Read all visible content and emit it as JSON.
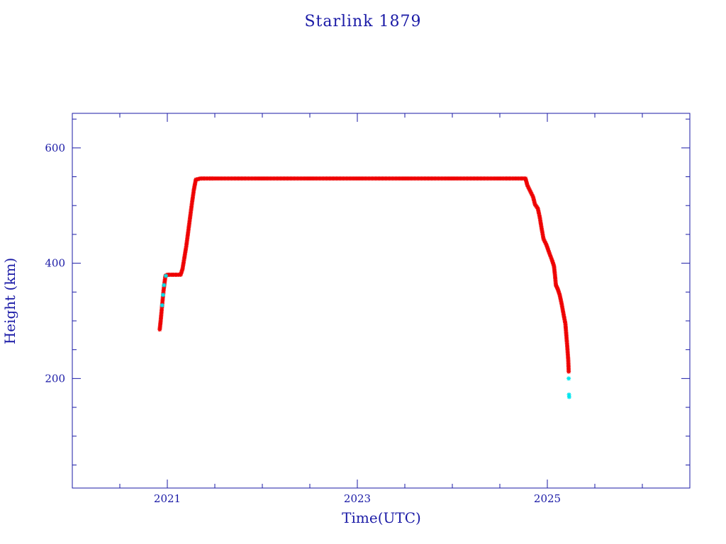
{
  "chart_data": {
    "type": "scatter",
    "title": "Starlink 1879",
    "xlabel": "Time(UTC)",
    "ylabel": "Height (km)",
    "xlim": [
      2020.0,
      2026.5
    ],
    "ylim": [
      10,
      660
    ],
    "x_major_ticks": [
      2021,
      2023,
      2025
    ],
    "x_tick_labels": [
      "2021",
      "2023",
      "2025"
    ],
    "x_minor_ticks": [
      2020.5,
      2021.5,
      2022.0,
      2022.5,
      2023.5,
      2024.0,
      2024.5,
      2025.5,
      2026.0
    ],
    "y_major_ticks": [
      200,
      400,
      600
    ],
    "y_tick_labels": [
      "200",
      "400",
      "600"
    ],
    "y_minor_ticks": [
      50,
      100,
      150,
      250,
      300,
      350,
      450,
      500,
      550,
      650
    ],
    "grid": false,
    "legend": "none",
    "colors": {
      "axis": "#1a1aa6",
      "main_points": "#ee0000",
      "highlight_points": "#00e5ee"
    },
    "series": [
      {
        "marker": "asterisk",
        "color": "#ee0000",
        "points": [
          [
            2020.92,
            285
          ],
          [
            2020.93,
            300
          ],
          [
            2020.94,
            318
          ],
          [
            2020.95,
            335
          ],
          [
            2020.96,
            352
          ],
          [
            2020.97,
            365
          ],
          [
            2020.98,
            378
          ],
          [
            2021.0,
            380
          ],
          [
            2021.05,
            380
          ],
          [
            2021.1,
            380
          ],
          [
            2021.14,
            380
          ],
          [
            2021.16,
            390
          ],
          [
            2021.18,
            410
          ],
          [
            2021.2,
            430
          ],
          [
            2021.22,
            455
          ],
          [
            2021.24,
            480
          ],
          [
            2021.26,
            505
          ],
          [
            2021.28,
            528
          ],
          [
            2021.3,
            545
          ],
          [
            2021.35,
            547
          ],
          [
            2021.5,
            547
          ],
          [
            2021.75,
            547
          ],
          [
            2022.0,
            547
          ],
          [
            2022.25,
            547
          ],
          [
            2022.5,
            547
          ],
          [
            2022.75,
            547
          ],
          [
            2023.0,
            547
          ],
          [
            2023.25,
            547
          ],
          [
            2023.5,
            547
          ],
          [
            2023.75,
            547
          ],
          [
            2024.0,
            547
          ],
          [
            2024.25,
            547
          ],
          [
            2024.5,
            547
          ],
          [
            2024.7,
            547
          ],
          [
            2024.77,
            547
          ],
          [
            2024.79,
            535
          ],
          [
            2024.82,
            525
          ],
          [
            2024.85,
            515
          ],
          [
            2024.87,
            502
          ],
          [
            2024.9,
            495
          ],
          [
            2024.92,
            480
          ],
          [
            2024.94,
            460
          ],
          [
            2024.96,
            442
          ],
          [
            2024.99,
            432
          ],
          [
            2025.02,
            418
          ],
          [
            2025.05,
            405
          ],
          [
            2025.07,
            395
          ],
          [
            2025.08,
            380
          ],
          [
            2025.09,
            362
          ],
          [
            2025.11,
            355
          ],
          [
            2025.13,
            345
          ],
          [
            2025.15,
            330
          ],
          [
            2025.17,
            312
          ],
          [
            2025.19,
            295
          ],
          [
            2025.2,
            275
          ],
          [
            2025.21,
            255
          ],
          [
            2025.22,
            232
          ],
          [
            2025.225,
            212
          ]
        ]
      },
      {
        "marker": "asterisk",
        "color": "#00e5ee",
        "points": [
          [
            2020.945,
            327
          ],
          [
            2020.955,
            345
          ],
          [
            2020.965,
            362
          ],
          [
            2020.985,
            378
          ],
          [
            2025.225,
            200
          ],
          [
            2025.228,
            172
          ],
          [
            2025.23,
            168
          ]
        ]
      }
    ]
  }
}
